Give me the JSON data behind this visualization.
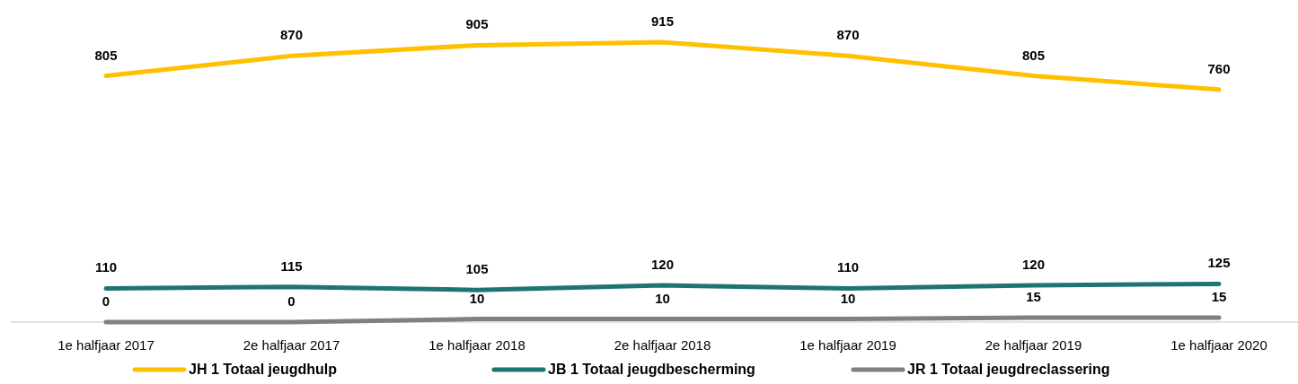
{
  "chart_data": {
    "type": "line",
    "categories": [
      "1e halfjaar 2017",
      "2e halfjaar 2017",
      "1e halfjaar 2018",
      "2e halfjaar 2018",
      "1e halfjaar 2019",
      "2e halfjaar 2019",
      "1e halfjaar 2020"
    ],
    "series": [
      {
        "name": "JH 1 Totaal jeugdhulp",
        "color": "#ffc000",
        "values": [
          805,
          870,
          905,
          915,
          870,
          805,
          760
        ]
      },
      {
        "name": "JB 1 Totaal jeugdbescherming",
        "color": "#1f7472",
        "values": [
          110,
          115,
          105,
          120,
          110,
          120,
          125
        ]
      },
      {
        "name": "JR 1 Totaal jeugdreclassering",
        "color": "#808080",
        "values": [
          0,
          0,
          10,
          10,
          10,
          15,
          15
        ]
      }
    ],
    "relative": false,
    "data_labels": true,
    "legend": "bottom",
    "marker": "none",
    "line_style": "solid"
  }
}
